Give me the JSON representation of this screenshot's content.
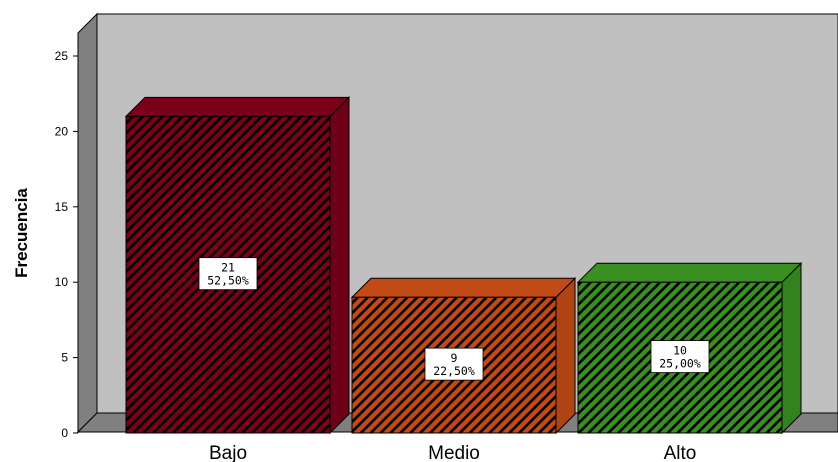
{
  "chart_data": {
    "type": "bar",
    "style": "3d-hatched",
    "categories": [
      "Bajo",
      "Medio",
      "Alto"
    ],
    "values": [
      21,
      9,
      10
    ],
    "percent_labels": [
      "52,50%",
      "22,50%",
      "25,00%"
    ],
    "count_labels": [
      "21",
      "9",
      "10"
    ],
    "colors": [
      "#7a0019",
      "#c24a16",
      "#3a8f22"
    ],
    "ylabel": "Frecuencia",
    "ylim": [
      0,
      25
    ],
    "yticks": [
      0,
      5,
      10,
      15,
      20,
      25
    ],
    "ytick_labels": [
      "0",
      "5",
      "10",
      "15",
      "20",
      "25"
    ],
    "grid": false,
    "background": "#c0c0c0",
    "wall_side_color": "#808080"
  }
}
